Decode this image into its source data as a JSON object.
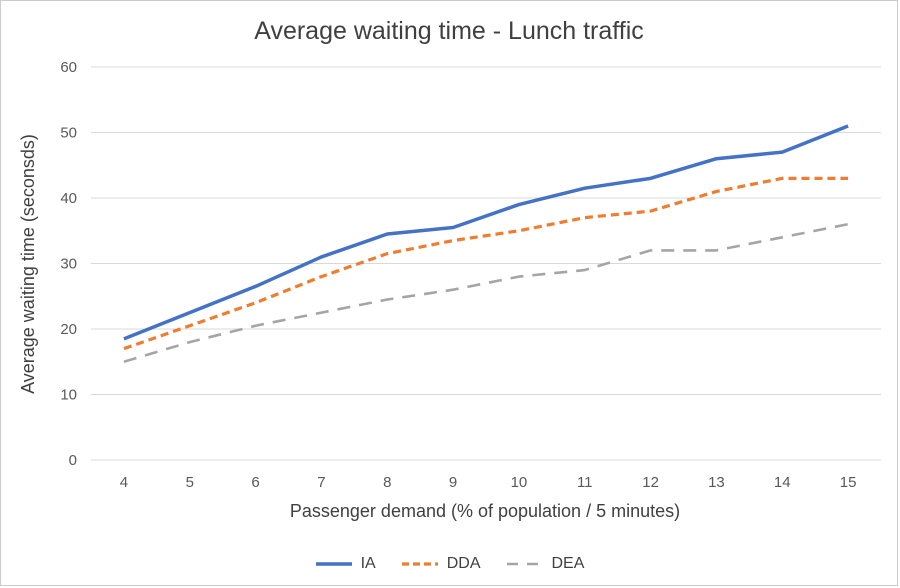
{
  "chart_data": {
    "type": "line",
    "title": "Average waiting time - Lunch traffic",
    "xlabel": "Passenger demand (% of population / 5 minutes)",
    "ylabel": "Average waiting time (seconsds)",
    "categories": [
      4,
      5,
      6,
      7,
      8,
      9,
      10,
      11,
      12,
      13,
      14,
      15
    ],
    "y_ticks": [
      0,
      10,
      20,
      30,
      40,
      50,
      60
    ],
    "ylim": [
      0,
      60
    ],
    "grid": "horizontal",
    "legend_position": "bottom",
    "series": [
      {
        "name": "IA",
        "color": "#4472C4",
        "dash": "solid",
        "values": [
          18.5,
          22.5,
          26.5,
          31,
          34.5,
          35.5,
          39,
          41.5,
          43,
          46,
          47,
          51
        ]
      },
      {
        "name": "DDA",
        "color": "#ED7D31",
        "dash": "dashed-short",
        "values": [
          17,
          20.5,
          24,
          28,
          31.5,
          33.5,
          35,
          37,
          38,
          41,
          43,
          43
        ]
      },
      {
        "name": "DEA",
        "color": "#A5A5A5",
        "dash": "dashed-long",
        "values": [
          15,
          18,
          20.5,
          22.5,
          24.5,
          26,
          28,
          29,
          32,
          32,
          34,
          36
        ]
      }
    ]
  },
  "colors": {
    "gridline": "#D9D9D9",
    "tick_text": "#595959",
    "title_text": "#404040"
  }
}
